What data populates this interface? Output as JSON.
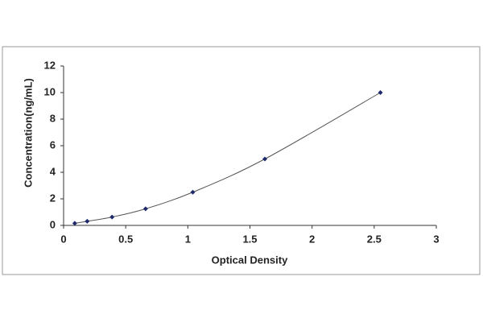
{
  "chart_data": {
    "type": "scatter",
    "line": true,
    "x_label": "Optical Density",
    "y_label": "Concentration(ng/mL)",
    "x": [
      0.09,
      0.19,
      0.39,
      0.66,
      1.04,
      1.62,
      2.55
    ],
    "values": [
      0.16,
      0.31,
      0.63,
      1.25,
      2.5,
      5,
      10
    ],
    "color": "#1f2a6b",
    "xlim": [
      0,
      3
    ],
    "xticks": [
      0,
      0.5,
      1,
      1.5,
      2,
      2.5,
      3
    ],
    "ylim": [
      0,
      12
    ],
    "yticks": [
      0,
      2,
      4,
      6,
      8,
      10,
      12
    ],
    "grid": false
  }
}
